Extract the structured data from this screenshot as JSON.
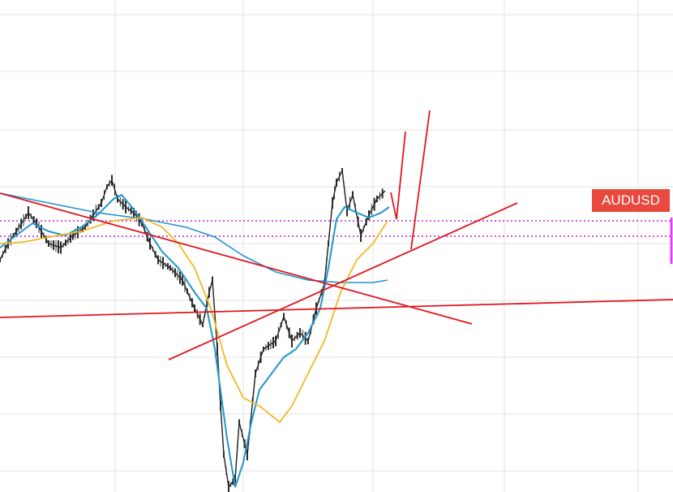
{
  "symbol_label": "AUDUSD"
}
